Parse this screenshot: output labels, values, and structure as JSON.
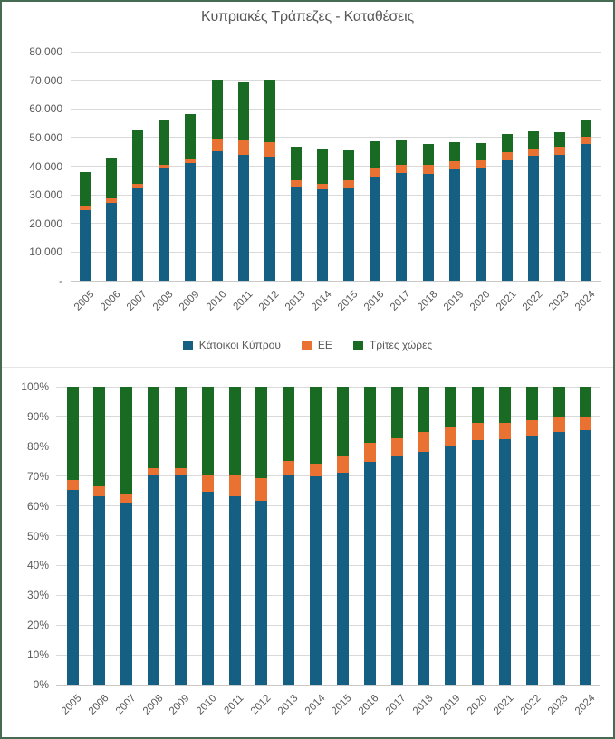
{
  "frame": {
    "border_color": "#456B52"
  },
  "colors": {
    "residents": "#156082",
    "eu": "#E97132",
    "third_countries": "#196B24"
  },
  "chart_data": [
    {
      "type": "bar",
      "stacked": true,
      "title": "Κυπριακές Τράπεζες - Καταθέσεις",
      "categories": [
        "2005",
        "2006",
        "2007",
        "2008",
        "2009",
        "2010",
        "2011",
        "2012",
        "2013",
        "2014",
        "2015",
        "2016",
        "2017",
        "2018",
        "2019",
        "2020",
        "2021",
        "2022",
        "2023",
        "2024"
      ],
      "series": [
        {
          "name": "Κάτοικοι Κύπρου",
          "color": "#156082",
          "values": [
            24800,
            27300,
            32100,
            39300,
            41100,
            45300,
            43800,
            43300,
            33000,
            32000,
            32300,
            36400,
            37600,
            37200,
            38800,
            39400,
            42200,
            43500,
            44100,
            47800
          ]
        },
        {
          "name": "ΕΕ",
          "color": "#E97132",
          "values": [
            1300,
            1400,
            1600,
            1300,
            1300,
            4000,
            5200,
            5200,
            2200,
            1900,
            2700,
            3000,
            3000,
            3200,
            3100,
            2800,
            2800,
            2800,
            2600,
            2500
          ]
        },
        {
          "name": "Τρίτες χώρες",
          "color": "#196B24",
          "values": [
            11900,
            14400,
            18900,
            15400,
            15800,
            20800,
            20400,
            21600,
            11600,
            11800,
            10400,
            9200,
            8500,
            7300,
            6500,
            5800,
            6300,
            5800,
            5300,
            5600
          ]
        }
      ],
      "totals": [
        38000,
        43100,
        52600,
        56000,
        58200,
        70100,
        69400,
        70100,
        46800,
        45700,
        45400,
        48600,
        49100,
        47700,
        48400,
        48000,
        51300,
        52100,
        52000,
        55900
      ],
      "xlabel": "",
      "ylabel": "",
      "ylim": [
        0,
        80000
      ],
      "ytick_interval": 10000,
      "y_tick_labels": [
        "-",
        "10,000",
        "20,000",
        "30,000",
        "40,000",
        "50,000",
        "60,000",
        "70,000",
        "80,000"
      ],
      "grid": true,
      "legend_position": "bottom"
    },
    {
      "type": "bar",
      "stacked": "percent",
      "title": "",
      "categories": [
        "2005",
        "2006",
        "2007",
        "2008",
        "2009",
        "2010",
        "2011",
        "2012",
        "2013",
        "2014",
        "2015",
        "2016",
        "2017",
        "2018",
        "2019",
        "2020",
        "2021",
        "2022",
        "2023",
        "2024"
      ],
      "series": [
        {
          "name": "Κάτοικοι Κύπρου",
          "color": "#156082",
          "values": [
            65.3,
            63.3,
            61.0,
            70.2,
            70.6,
            64.6,
            63.1,
            61.8,
            70.5,
            70.0,
            71.1,
            74.9,
            76.6,
            78.0,
            80.2,
            82.1,
            82.3,
            83.5,
            84.8,
            85.5
          ]
        },
        {
          "name": "ΕΕ",
          "color": "#E97132",
          "values": [
            3.4,
            3.2,
            3.0,
            2.3,
            2.2,
            5.7,
            7.5,
            7.4,
            4.7,
            4.2,
            5.9,
            6.2,
            6.1,
            6.7,
            6.4,
            5.8,
            5.5,
            5.4,
            5.0,
            4.5
          ]
        },
        {
          "name": "Τρίτες χώρες",
          "color": "#196B24",
          "values": [
            31.3,
            33.5,
            36.0,
            27.5,
            27.2,
            29.7,
            29.4,
            30.8,
            24.8,
            25.8,
            23.0,
            18.9,
            17.3,
            15.3,
            13.4,
            12.1,
            12.2,
            11.1,
            10.2,
            10.0
          ]
        }
      ],
      "xlabel": "",
      "ylabel": "",
      "ylim": [
        0,
        100
      ],
      "ytick_interval": 10,
      "y_tick_labels": [
        "0%",
        "10%",
        "20%",
        "30%",
        "40%",
        "50%",
        "60%",
        "70%",
        "80%",
        "90%",
        "100%"
      ],
      "grid": true,
      "legend_position": "none"
    }
  ]
}
